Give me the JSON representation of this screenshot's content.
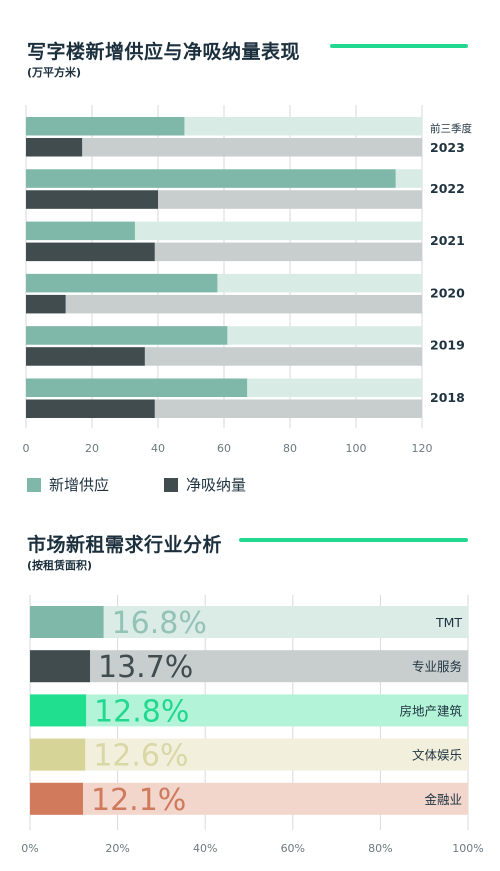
{
  "colors": {
    "accent": "#20d98f",
    "supply": "#7fb8a8",
    "supply_track": "#d8ebe5",
    "absorption": "#404c4e",
    "absorption_track": "#c8cdcd",
    "grid": "#d8dada",
    "axis_text": "#6d7a80"
  },
  "chart_data": [
    {
      "type": "bar",
      "orientation": "horizontal",
      "title": "写字楼新增供应与净吸纳量表现",
      "subtitle": "(万平方米)",
      "categories": [
        [
          "前三季度",
          "2023"
        ],
        [
          "2022"
        ],
        [
          "2021"
        ],
        [
          "2020"
        ],
        [
          "2019"
        ],
        [
          "2018"
        ]
      ],
      "series": [
        {
          "name": "新增供应",
          "values": [
            48,
            112,
            33,
            58,
            61,
            67
          ]
        },
        {
          "name": "净吸纳量",
          "values": [
            17,
            40,
            39,
            12,
            36,
            39
          ]
        }
      ],
      "xlim": [
        0,
        120
      ],
      "xticks": [
        0,
        20,
        40,
        60,
        80,
        100,
        120
      ],
      "grid": true,
      "legend": "bottom-left"
    },
    {
      "type": "bar",
      "orientation": "horizontal",
      "title": "市场新租需求行业分析",
      "subtitle": "(按租赁面积)",
      "categories": [
        "TMT",
        "专业服务",
        "房地产建筑",
        "文体娱乐",
        "金融业"
      ],
      "values": [
        16.8,
        13.7,
        12.8,
        12.6,
        12.1
      ],
      "value_labels": [
        "16.8%",
        "13.7%",
        "12.8%",
        "12.6%",
        "12.1%"
      ],
      "bar_colors": [
        "#7fb8a8",
        "#404c4e",
        "#20e08f",
        "#d6d496",
        "#d27a5c"
      ],
      "track_colors": [
        "#dbebe6",
        "#c8cdcd",
        "#b3f4d9",
        "#f2f0dc",
        "#f2d6cc"
      ],
      "label_colors": [
        "#93c3b5",
        "#404c4e",
        "#20d98f",
        "#d8d7a6",
        "#cf7a5c"
      ],
      "xlim": [
        0,
        100
      ],
      "xticks": [
        "0%",
        "20%",
        "40%",
        "60%",
        "80%",
        "100%"
      ],
      "grid": true
    }
  ]
}
